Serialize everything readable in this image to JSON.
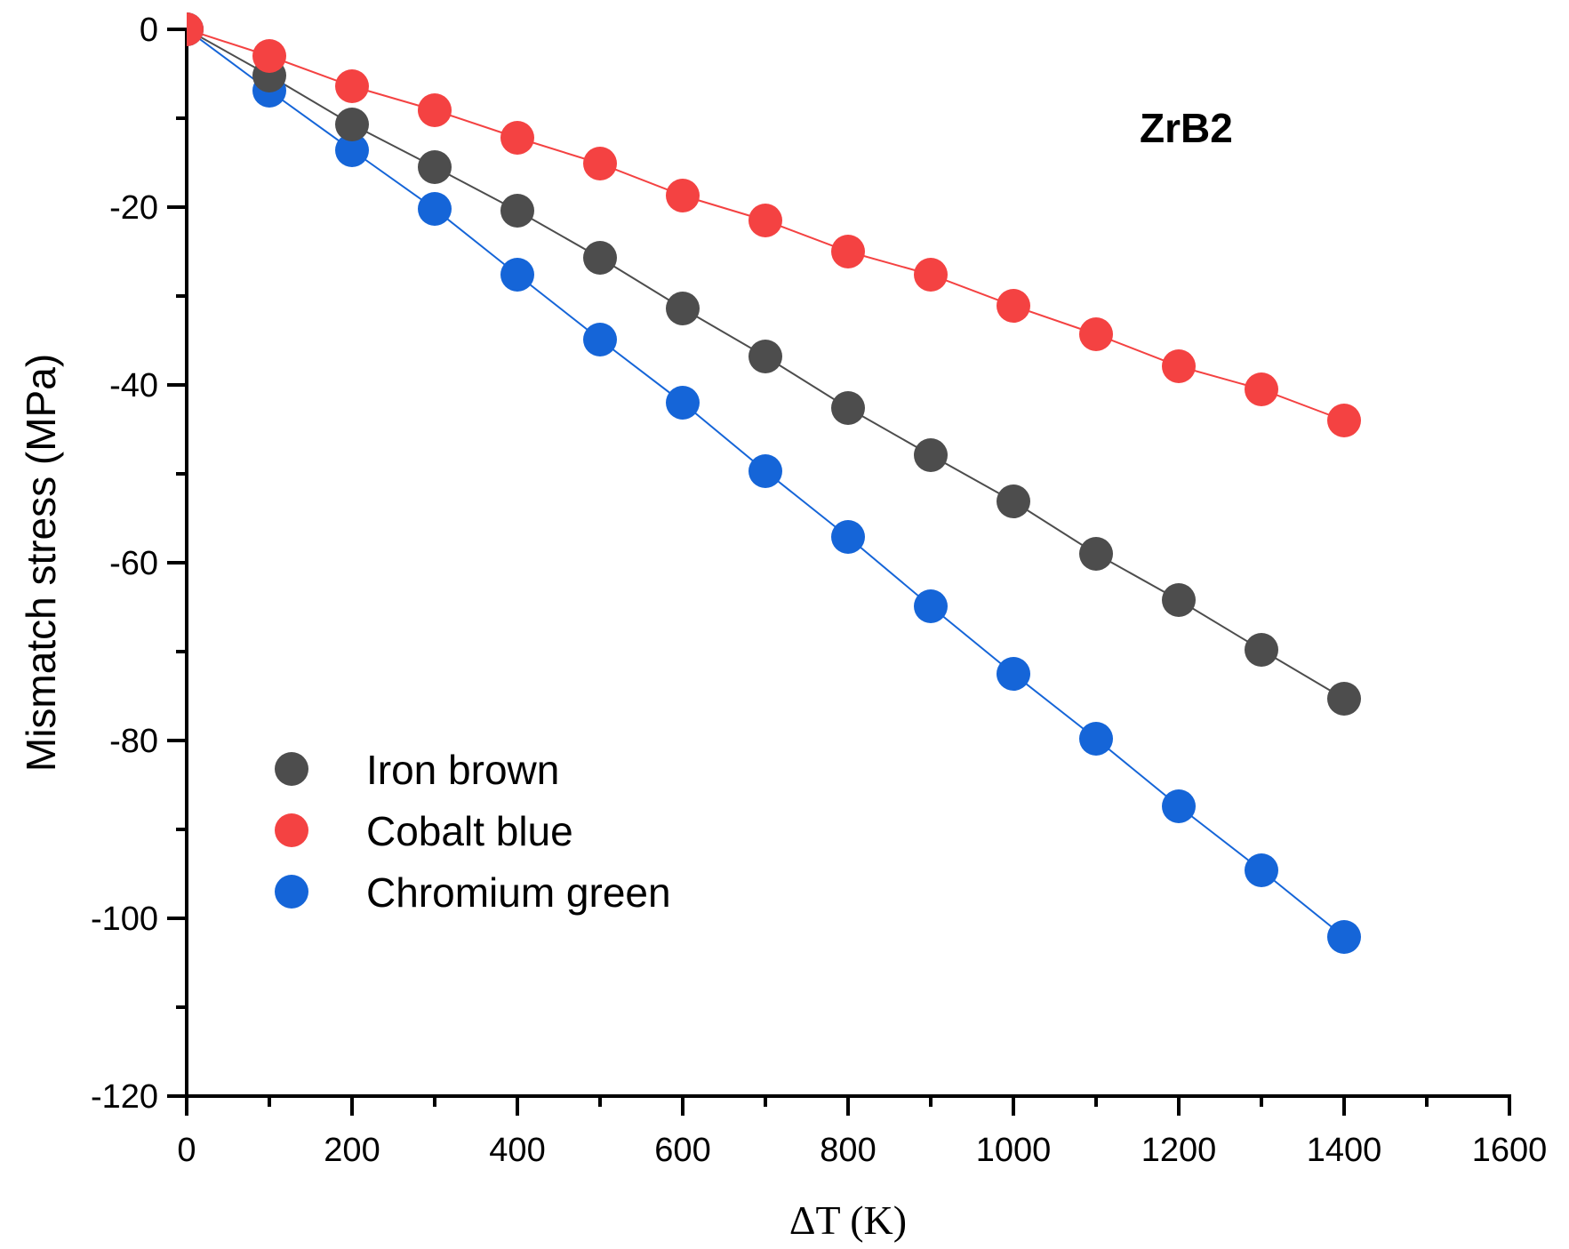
{
  "chart_data": {
    "type": "line",
    "title": "",
    "annotation": "ZrB2",
    "xlabel": "ΔT (K)",
    "ylabel": "Mismatch stress (MPa)",
    "xlim": [
      0,
      1600
    ],
    "ylim": [
      -120,
      0
    ],
    "x_major_ticks": [
      0,
      200,
      400,
      600,
      800,
      1000,
      1200,
      1400,
      1600
    ],
    "x_tick_labels": [
      "0",
      "200",
      "400",
      "600",
      "800",
      "1000",
      "1200",
      "1400",
      "1600"
    ],
    "y_major_ticks": [
      0,
      -20,
      -40,
      -60,
      -80,
      -100,
      -120
    ],
    "y_tick_labels": [
      "0",
      "-20",
      "-40",
      "-60",
      "-80",
      "-100",
      "-120"
    ],
    "grid": false,
    "legend_position": "bottom-left",
    "x": [
      0,
      100,
      200,
      300,
      400,
      500,
      600,
      700,
      800,
      900,
      1000,
      1100,
      1200,
      1300,
      1400
    ],
    "series": [
      {
        "name": "Iron brown",
        "color": "#4d4d4d",
        "values": [
          0,
          -5.2,
          -10.7,
          -15.5,
          -20.4,
          -25.7,
          -31.4,
          -36.8,
          -42.6,
          -47.9,
          -53.1,
          -59.0,
          -64.2,
          -69.8,
          -75.3
        ]
      },
      {
        "name": "Cobalt blue",
        "color": "#f44242",
        "values": [
          0,
          -3.0,
          -6.4,
          -9.1,
          -12.2,
          -15.1,
          -18.7,
          -21.5,
          -25.0,
          -27.6,
          -31.1,
          -34.3,
          -37.9,
          -40.5,
          -44.0
        ]
      },
      {
        "name": "Chromium green",
        "color": "#1565d8",
        "values": [
          0,
          -6.9,
          -13.6,
          -20.2,
          -27.6,
          -34.9,
          -42.0,
          -49.7,
          -57.1,
          -64.9,
          -72.5,
          -79.8,
          -87.4,
          -94.6,
          -102.1
        ]
      }
    ]
  }
}
